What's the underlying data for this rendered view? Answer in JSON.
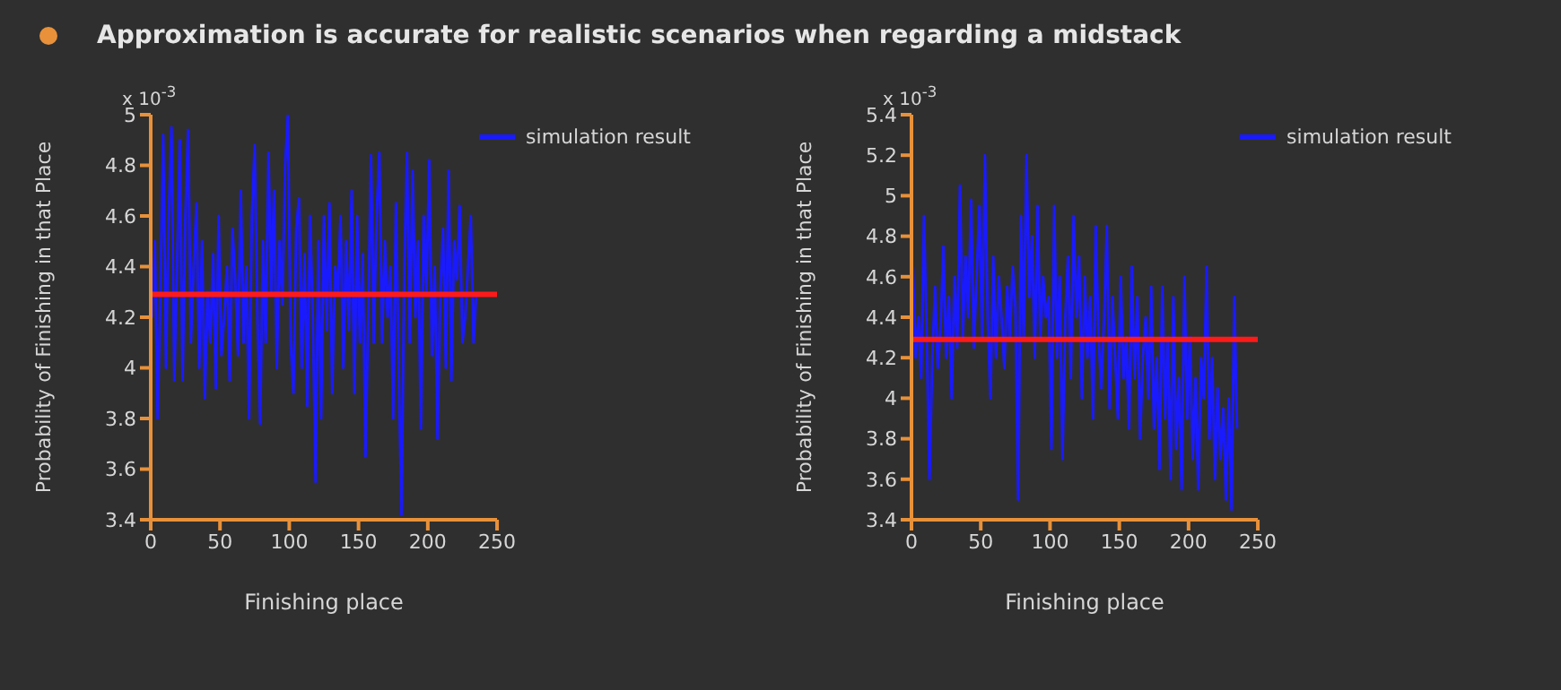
{
  "chart_data": [
    {
      "type": "line",
      "title": "Approximation is accurate for realistic scenarios when regarding a midstack",
      "xlabel": "Finishing place",
      "ylabel": "Probability of Finishing in that Place",
      "annotations": [
        "x 10$^{-3}$"
      ],
      "xlim": [
        0,
        250
      ],
      "xticks": [
        0,
        50,
        100,
        150,
        200,
        250
      ],
      "ylim": [
        3.4,
        5
      ],
      "yticks": [
        3.4,
        3.6,
        3.8,
        4,
        4.2,
        4.4,
        4.6,
        4.8,
        5
      ],
      "legend": "top right",
      "grid": false,
      "marker": "none",
      "line_style": "solid",
      "ref_lines": [
        {
          "axis": "y",
          "value": 4.29,
          "color": "#ff1a1a"
        }
      ],
      "series": [
        {
          "name": "simulation result",
          "color": "#1a1aff",
          "x": [
            1,
            3,
            5,
            7,
            9,
            11,
            13,
            15,
            17,
            19,
            21,
            23,
            25,
            27,
            29,
            31,
            33,
            35,
            37,
            39,
            41,
            43,
            45,
            47,
            49,
            51,
            53,
            55,
            57,
            59,
            61,
            63,
            65,
            67,
            69,
            71,
            73,
            75,
            77,
            79,
            81,
            83,
            85,
            87,
            89,
            91,
            93,
            95,
            97,
            99,
            101,
            103,
            105,
            107,
            109,
            111,
            113,
            115,
            117,
            119,
            121,
            123,
            125,
            127,
            129,
            131,
            133,
            135,
            137,
            139,
            141,
            143,
            145,
            147,
            149,
            151,
            153,
            155,
            157,
            159,
            161,
            163,
            165,
            167,
            169,
            171,
            173,
            175,
            177,
            179,
            181,
            183,
            185,
            187,
            189,
            191,
            193,
            195,
            197,
            199,
            201,
            203,
            205,
            207,
            209,
            211,
            213,
            215,
            217,
            219,
            221,
            223,
            225,
            227,
            229,
            231,
            233,
            235
          ],
          "values": [
            4.2,
            4.5,
            3.8,
            4.3,
            4.92,
            4.0,
            4.6,
            4.95,
            3.95,
            4.4,
            4.9,
            3.95,
            4.6,
            4.94,
            4.1,
            4.4,
            4.65,
            4.0,
            4.5,
            3.88,
            4.3,
            4.1,
            4.45,
            3.92,
            4.6,
            4.05,
            4.2,
            4.4,
            3.95,
            4.55,
            4.35,
            4.05,
            4.7,
            4.1,
            4.4,
            3.8,
            4.6,
            4.88,
            4.2,
            3.78,
            4.5,
            4.1,
            4.85,
            4.3,
            4.7,
            4.0,
            4.5,
            4.25,
            4.8,
            5.0,
            4.1,
            3.9,
            4.55,
            4.67,
            4.0,
            4.45,
            3.85,
            4.6,
            4.2,
            3.55,
            4.5,
            3.8,
            4.6,
            4.15,
            4.65,
            3.9,
            4.4,
            4.3,
            4.6,
            4.0,
            4.5,
            4.15,
            4.7,
            3.9,
            4.6,
            4.1,
            4.45,
            3.65,
            4.2,
            4.84,
            4.1,
            4.6,
            4.85,
            4.1,
            4.5,
            4.2,
            4.4,
            3.8,
            4.65,
            4.0,
            3.42,
            4.4,
            4.85,
            4.1,
            4.78,
            4.2,
            4.5,
            3.76,
            4.6,
            4.3,
            4.82,
            4.05,
            4.4,
            3.72,
            4.3,
            4.55,
            4.0,
            4.78,
            3.95,
            4.5,
            4.35,
            4.64,
            4.1,
            4.2,
            4.4,
            4.6,
            4.1,
            4.3
          ]
        }
      ]
    },
    {
      "type": "line",
      "xlabel": "Finishing place",
      "ylabel": "Probability of Finishing in that Place",
      "annotations": [
        "x 10$^{-3}$"
      ],
      "xlim": [
        0,
        250
      ],
      "xticks": [
        0,
        50,
        100,
        150,
        200,
        250
      ],
      "ylim": [
        3.4,
        5.4
      ],
      "yticks": [
        3.4,
        3.6,
        3.8,
        4,
        4.2,
        4.4,
        4.6,
        4.8,
        5,
        5.2,
        5.4
      ],
      "legend": "top right",
      "grid": false,
      "marker": "none",
      "line_style": "solid",
      "ref_lines": [
        {
          "axis": "y",
          "value": 4.29,
          "color": "#ff1a1a"
        }
      ],
      "series": [
        {
          "name": "simulation result",
          "color": "#1a1aff",
          "x": [
            1,
            3,
            5,
            7,
            9,
            11,
            13,
            15,
            17,
            19,
            21,
            23,
            25,
            27,
            29,
            31,
            33,
            35,
            37,
            39,
            41,
            43,
            45,
            47,
            49,
            51,
            53,
            55,
            57,
            59,
            61,
            63,
            65,
            67,
            69,
            71,
            73,
            75,
            77,
            79,
            81,
            83,
            85,
            87,
            89,
            91,
            93,
            95,
            97,
            99,
            101,
            103,
            105,
            107,
            109,
            111,
            113,
            115,
            117,
            119,
            121,
            123,
            125,
            127,
            129,
            131,
            133,
            135,
            137,
            139,
            141,
            143,
            145,
            147,
            149,
            151,
            153,
            155,
            157,
            159,
            161,
            163,
            165,
            167,
            169,
            171,
            173,
            175,
            177,
            179,
            181,
            183,
            185,
            187,
            189,
            191,
            193,
            195,
            197,
            199,
            201,
            203,
            205,
            207,
            209,
            211,
            213,
            215,
            217,
            219,
            221,
            223,
            225,
            227,
            229,
            231,
            233,
            235
          ],
          "values": [
            4.65,
            4.2,
            4.4,
            4.1,
            4.9,
            4.3,
            3.6,
            4.2,
            4.55,
            4.15,
            4.35,
            4.75,
            4.2,
            4.5,
            4.0,
            4.6,
            4.25,
            5.05,
            4.3,
            4.7,
            4.4,
            4.98,
            4.25,
            4.6,
            4.95,
            4.3,
            5.2,
            4.4,
            4.0,
            4.7,
            4.2,
            4.6,
            4.4,
            4.15,
            4.55,
            4.3,
            4.65,
            4.45,
            3.5,
            4.9,
            4.3,
            5.2,
            4.5,
            4.8,
            4.2,
            4.95,
            4.3,
            4.6,
            4.4,
            4.5,
            3.75,
            4.95,
            4.2,
            4.6,
            3.7,
            4.4,
            4.7,
            4.1,
            4.9,
            4.4,
            4.7,
            4.0,
            4.6,
            4.2,
            4.5,
            3.9,
            4.85,
            4.3,
            4.05,
            4.4,
            4.85,
            3.95,
            4.5,
            4.2,
            3.9,
            4.6,
            4.1,
            4.3,
            3.85,
            4.65,
            4.1,
            4.5,
            3.8,
            4.2,
            4.4,
            4.0,
            4.55,
            3.85,
            4.2,
            3.65,
            4.55,
            3.9,
            4.3,
            3.6,
            4.5,
            3.75,
            4.1,
            3.55,
            4.6,
            3.9,
            4.3,
            3.7,
            4.1,
            3.55,
            4.2,
            4.0,
            4.65,
            3.8,
            4.2,
            3.6,
            4.05,
            3.7,
            3.95,
            3.5,
            4.0,
            3.45,
            4.5,
            3.85
          ]
        }
      ]
    }
  ]
}
